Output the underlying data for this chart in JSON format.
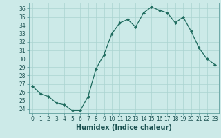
{
  "x": [
    0,
    1,
    2,
    3,
    4,
    5,
    6,
    7,
    8,
    9,
    10,
    11,
    12,
    13,
    14,
    15,
    16,
    17,
    18,
    19,
    20,
    21,
    22,
    23
  ],
  "y": [
    26.7,
    25.8,
    25.5,
    24.7,
    24.5,
    23.8,
    23.8,
    25.5,
    28.8,
    30.5,
    33.0,
    34.3,
    34.7,
    33.8,
    35.5,
    36.2,
    35.8,
    35.5,
    34.3,
    35.0,
    33.3,
    31.3,
    30.0,
    29.3
  ],
  "line_color": "#1e6b5e",
  "marker": "D",
  "marker_size": 2.0,
  "bg_color": "#cceae8",
  "grid_color": "#aad4d0",
  "xlabel": "Humidex (Indice chaleur)",
  "xlim": [
    -0.5,
    23.5
  ],
  "ylim": [
    23.5,
    36.7
  ],
  "yticks": [
    24,
    25,
    26,
    27,
    28,
    29,
    30,
    31,
    32,
    33,
    34,
    35,
    36
  ],
  "xticks": [
    0,
    1,
    2,
    3,
    4,
    5,
    6,
    7,
    8,
    9,
    10,
    11,
    12,
    13,
    14,
    15,
    16,
    17,
    18,
    19,
    20,
    21,
    22,
    23
  ],
  "tick_fontsize": 5.5,
  "xlabel_fontsize": 7.0
}
